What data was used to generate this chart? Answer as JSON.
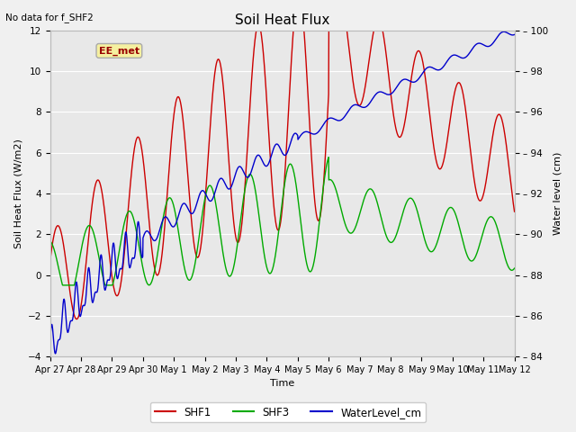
{
  "title": "Soil Heat Flux",
  "no_data_label": "No data for f_SHF2",
  "ylabel_left": "Soil Heat Flux (W/m2)",
  "ylabel_right": "Water level (cm)",
  "xlabel": "Time",
  "ylim_left": [
    -4,
    12
  ],
  "ylim_right": [
    84,
    100
  ],
  "yticks_left": [
    -4,
    -2,
    0,
    2,
    4,
    6,
    8,
    10,
    12
  ],
  "yticks_right": [
    84,
    86,
    88,
    90,
    92,
    94,
    96,
    98,
    100
  ],
  "xtick_labels": [
    "Apr 27",
    "Apr 28",
    "Apr 29",
    "Apr 30",
    "May 1",
    "May 2",
    "May 3",
    "May 4",
    "May 5",
    "May 6",
    "May 7",
    "May 8",
    "May 9",
    "May 10",
    "May 11",
    "May 12"
  ],
  "legend_labels": [
    "SHF1",
    "SHF3",
    "WaterLevel_cm"
  ],
  "legend_colors": [
    "#cc0000",
    "#00aa00",
    "#0000cc"
  ],
  "ee_met_label": "EE_met",
  "fig_facecolor": "#f0f0f0",
  "ax_facecolor": "#e8e8e8",
  "grid_color": "#ffffff",
  "colors": {
    "SHF1": "#cc0000",
    "SHF3": "#00aa00",
    "WaterLevel": "#0000cc"
  }
}
